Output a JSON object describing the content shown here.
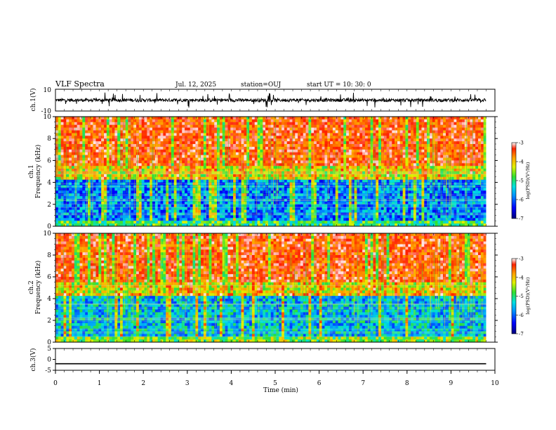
{
  "header": {
    "title": "VLF Spectra",
    "date": "Jul. 12, 2025",
    "station": "station=OUJ",
    "start": "start UT =  10: 30: 0"
  },
  "chart_data": [
    {
      "type": "line",
      "id": "ch1-waveform",
      "ylabel": "ch.1(V)",
      "ylim": [
        -10,
        10
      ],
      "yticks": [
        "10",
        "-10"
      ],
      "xlim": [
        0,
        10
      ],
      "description_values": {
        "baseline": 0,
        "typical_spike_max": 7,
        "typical_spike_min": -8
      }
    },
    {
      "type": "heatmap",
      "id": "ch1-spectrogram",
      "ylabel_1": "ch.1",
      "ylabel_2": "Frequency (kHz)",
      "ylim": [
        0,
        10
      ],
      "yticks": [
        "0",
        "2",
        "4",
        "6",
        "8",
        "10"
      ],
      "xlim": [
        0,
        9.8
      ],
      "colorbar": {
        "label": "log(PSD)(V²/Hz)",
        "range": [
          -7,
          -3
        ],
        "ticks": [
          "-3",
          "-4",
          "-5",
          "-6",
          "-7"
        ]
      }
    },
    {
      "type": "heatmap",
      "id": "ch2-spectrogram",
      "ylabel_1": "ch.2",
      "ylabel_2": "Frequency (kHz)",
      "ylim": [
        0,
        10
      ],
      "yticks": [
        "0",
        "2",
        "4",
        "6",
        "8",
        "10"
      ],
      "xlim": [
        0,
        9.8
      ],
      "colorbar": {
        "label": "log(PSD)(V²/Hz)",
        "range": [
          -7,
          -3
        ],
        "ticks": [
          "-3",
          "-4",
          "-5",
          "-6",
          "-7"
        ]
      }
    },
    {
      "type": "line",
      "id": "ch3-waveform",
      "ylabel": "ch.3(V)",
      "ylim": [
        -5,
        5
      ],
      "yticks": [
        "5",
        "0",
        "-5"
      ],
      "xlim": [
        0,
        9.8
      ],
      "x": [
        0,
        9.8
      ],
      "y": [
        -2,
        -2
      ]
    }
  ],
  "xaxis": {
    "label": "Time (min)",
    "ticks": [
      "0",
      "1",
      "2",
      "3",
      "4",
      "5",
      "6",
      "7",
      "8",
      "9",
      "10"
    ],
    "range": [
      0,
      10
    ]
  }
}
